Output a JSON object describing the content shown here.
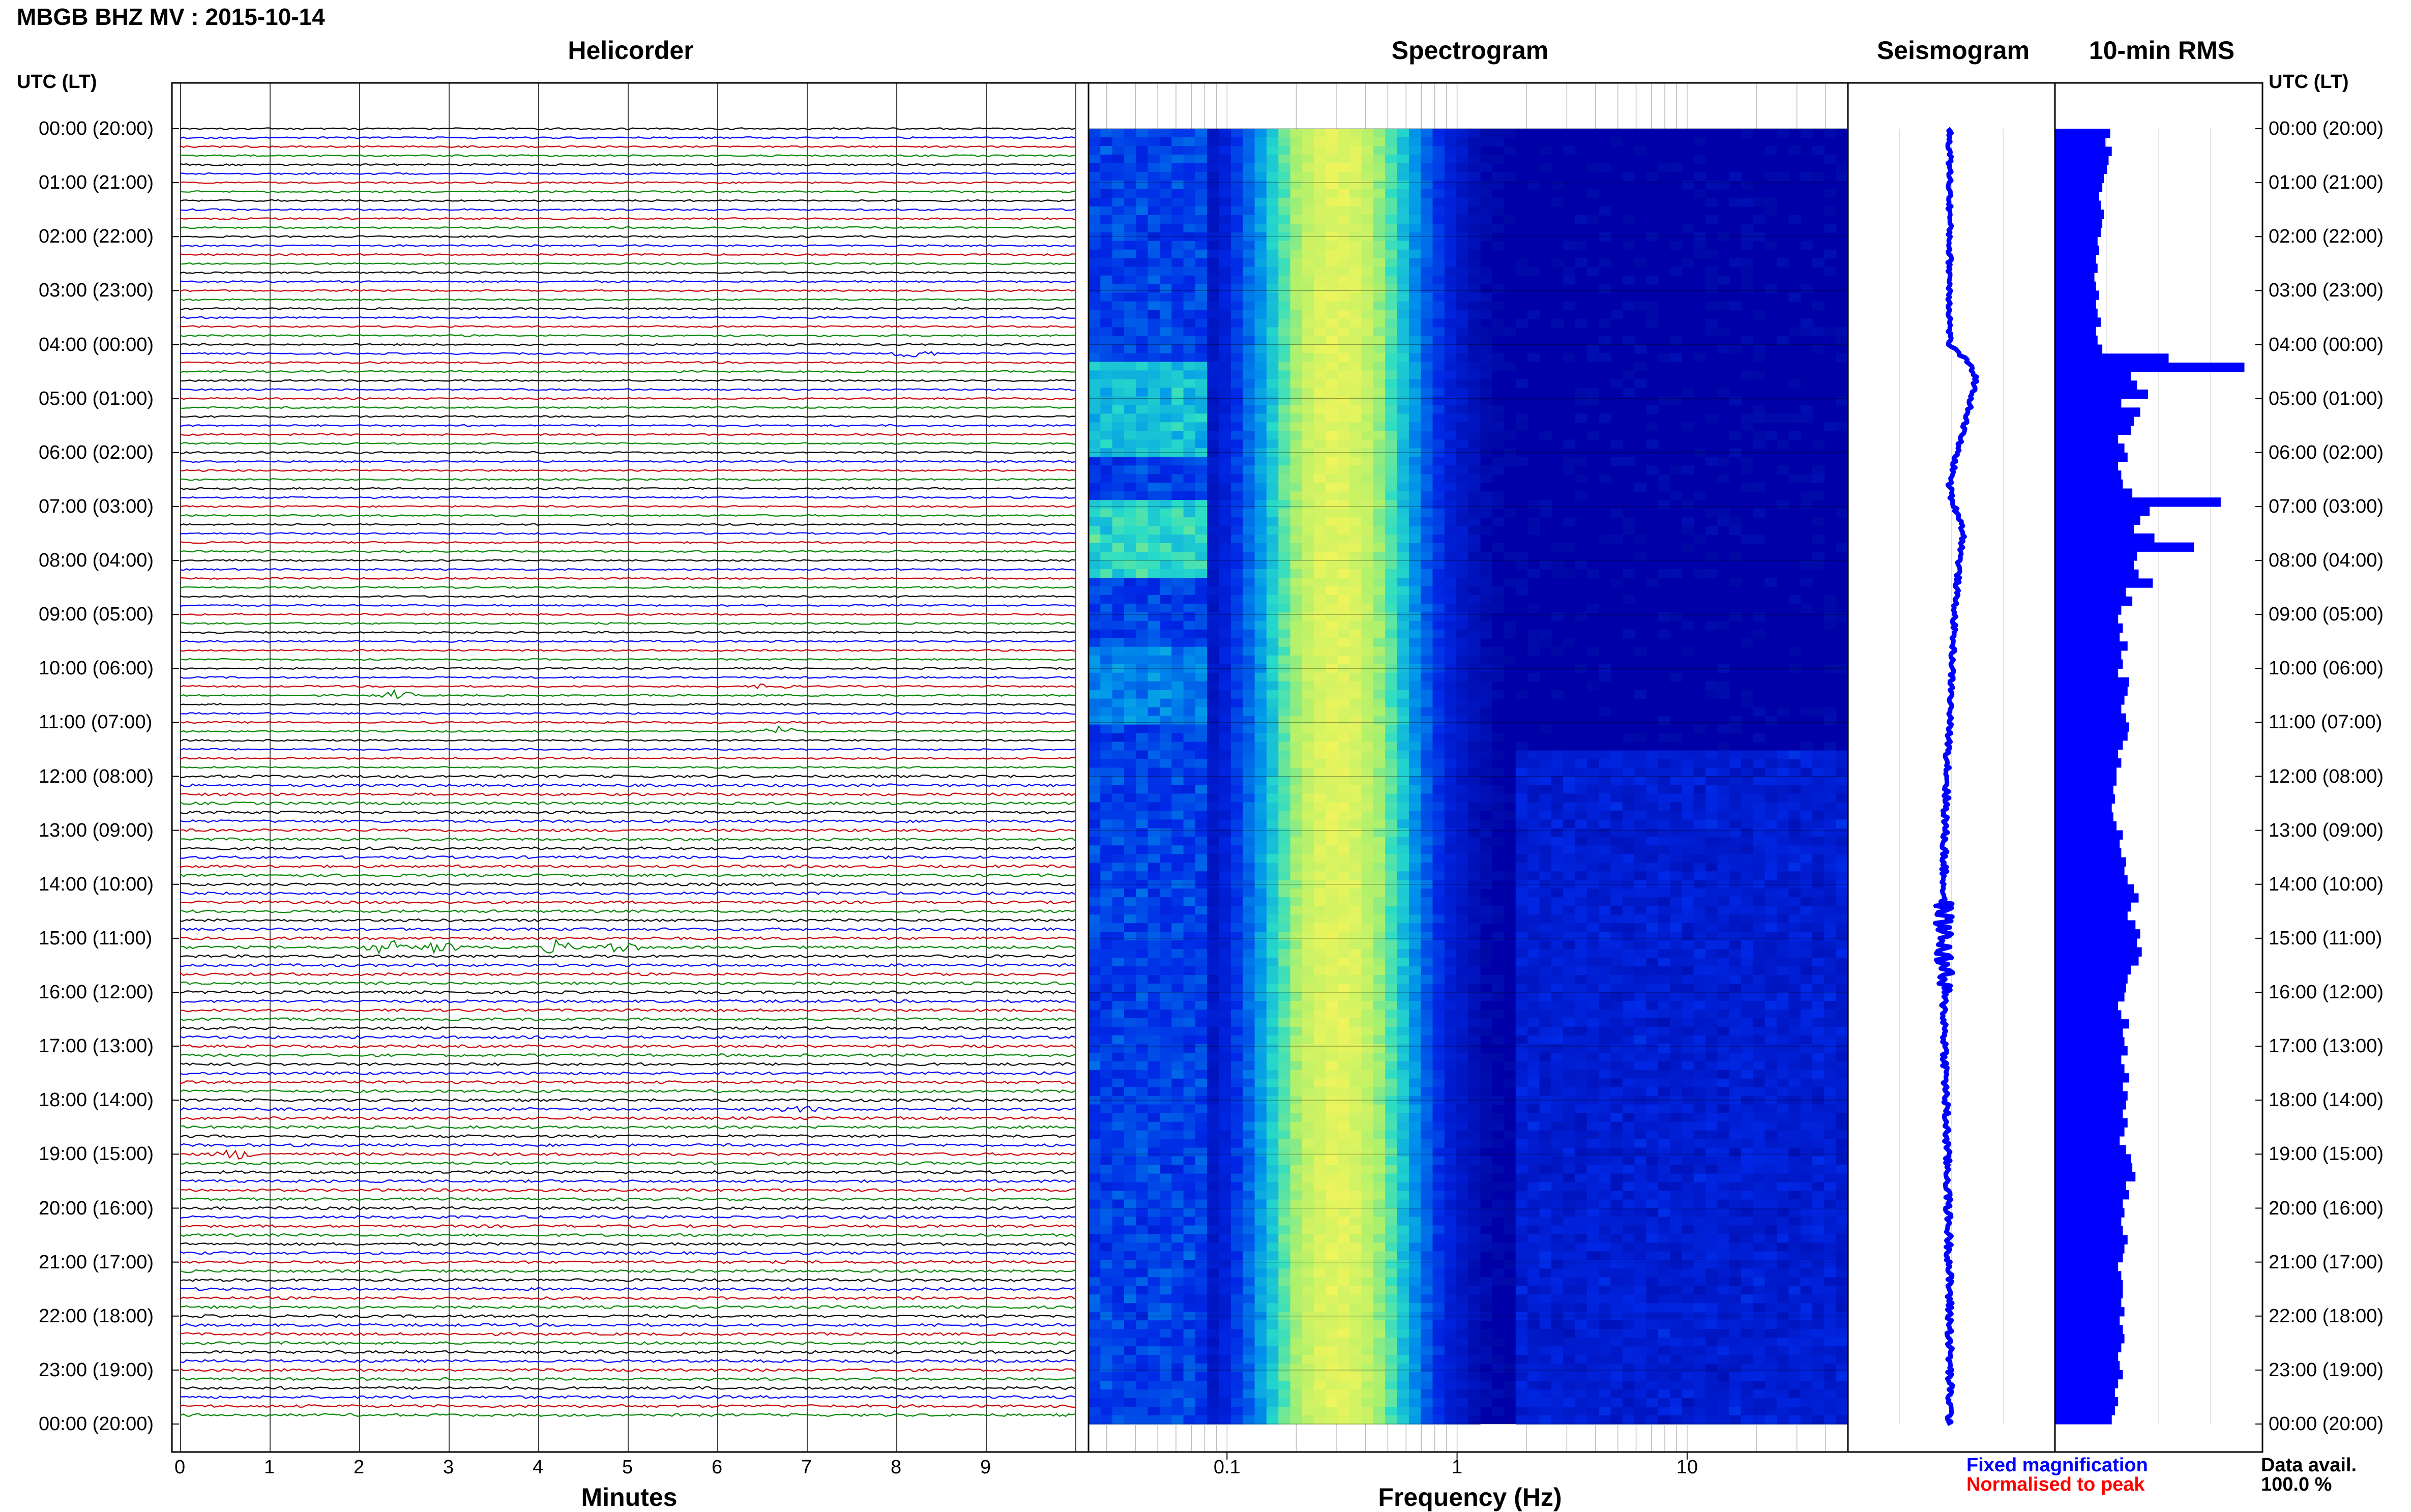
{
  "header": {
    "title": "MBGB BHZ MV : 2015-10-14"
  },
  "panels": {
    "helicorder": "Helicorder",
    "spectrogram": "Spectrogram",
    "seismogram": "Seismogram",
    "rms": "10-min RMS"
  },
  "time_axis": {
    "label": "UTC (LT)",
    "ticks": [
      "00:00 (20:00)",
      "01:00 (21:00)",
      "02:00 (22:00)",
      "03:00 (23:00)",
      "04:00 (00:00)",
      "05:00 (01:00)",
      "06:00 (02:00)",
      "07:00 (03:00)",
      "08:00 (04:00)",
      "09:00 (05:00)",
      "10:00 (06:00)",
      "11:00 (07:00)",
      "12:00 (08:00)",
      "13:00 (09:00)",
      "14:00 (10:00)",
      "15:00 (11:00)",
      "16:00 (12:00)",
      "17:00 (13:00)",
      "18:00 (14:00)",
      "19:00 (15:00)",
      "20:00 (16:00)",
      "21:00 (17:00)",
      "22:00 (18:00)",
      "23:00 (19:00)",
      "00:00 (20:00)"
    ]
  },
  "x_axes": {
    "minutes_label": "Minutes",
    "minutes_ticks": [
      "0",
      "1",
      "2",
      "3",
      "4",
      "5",
      "6",
      "7",
      "8",
      "9"
    ],
    "frequency_label": "Frequency (Hz)",
    "frequency_ticks": [
      "0.1",
      "1",
      "10"
    ]
  },
  "legend": {
    "fixed": "Fixed magnification",
    "normalised": "Normalised to peak"
  },
  "availability": {
    "label": "Data avail.",
    "value": "100.0 %"
  },
  "colors": {
    "trace_colors": [
      "#000000",
      "#0000ff",
      "#cc0000",
      "#008800"
    ],
    "spectrogram_low": "#0000a8",
    "spectrogram_high": "#f0f060",
    "rms_fill": "#0000ff",
    "seismogram_line": "#0000ff"
  },
  "chart_data": [
    {
      "type": "line",
      "panel": "helicorder",
      "x_range_minutes": [
        0,
        10
      ],
      "rows_per_hour": 6,
      "hours": 24,
      "events": [
        {
          "hour": 4.17,
          "minute": 8.2,
          "amplitude": 3
        },
        {
          "hour": 10.5,
          "minute": 2.4,
          "amplitude": 3
        },
        {
          "hour": 10.3,
          "minute": 6.6,
          "amplitude": 2
        },
        {
          "hour": 11.1,
          "minute": 6.7,
          "amplitude": 3
        },
        {
          "hour": 15.17,
          "minute": 2.3,
          "amplitude": 5
        },
        {
          "hour": 15.17,
          "minute": 2.9,
          "amplitude": 4
        },
        {
          "hour": 15.17,
          "minute": 4.2,
          "amplitude": 4
        },
        {
          "hour": 15.17,
          "minute": 4.9,
          "amplitude": 4
        },
        {
          "hour": 18.17,
          "minute": 6.9,
          "amplitude": 2
        },
        {
          "hour": 19.0,
          "minute": 0.6,
          "amplitude": 3
        }
      ]
    },
    {
      "type": "heatmap",
      "panel": "spectrogram",
      "xscale": "log",
      "x_range_hz": [
        0.025,
        50
      ],
      "energy_peak_hz": 0.3
    },
    {
      "type": "line",
      "panel": "seismogram",
      "y_hours": [
        0,
        2,
        4,
        4.3,
        4.6,
        5.2,
        6.0,
        6.6,
        6.9,
        7.3,
        7.6,
        8.0,
        8.5,
        9.0,
        10.0,
        11.0,
        12.0,
        13.0,
        14.0,
        15.0,
        16.0,
        17.0,
        18.0,
        19.0,
        20.0,
        21.0,
        22.0,
        23.0,
        24.0
      ],
      "x_offset": [
        0,
        0,
        0,
        0.35,
        0.55,
        0.4,
        0.15,
        0.0,
        0.05,
        0.25,
        0.28,
        0.2,
        0.15,
        0.1,
        0.05,
        0.0,
        -0.05,
        -0.1,
        -0.12,
        -0.12,
        -0.12,
        -0.1,
        -0.08,
        -0.05,
        -0.03,
        -0.01,
        0.0,
        0.0,
        0.0
      ]
    },
    {
      "type": "bar",
      "panel": "rms",
      "orientation": "horizontal",
      "bin_minutes": 10,
      "values": [
        3.5,
        3.2,
        3.6,
        3.4,
        3.3,
        3.1,
        3.0,
        2.8,
        2.9,
        3.1,
        3.0,
        2.9,
        2.7,
        2.8,
        2.6,
        2.7,
        2.5,
        2.6,
        2.8,
        2.6,
        2.7,
        2.9,
        2.6,
        2.7,
        3.0,
        7.2,
        12.0,
        4.8,
        5.2,
        5.9,
        4.2,
        5.4,
        5.0,
        4.8,
        4.0,
        4.4,
        4.6,
        4.0,
        4.2,
        4.3,
        4.9,
        10.5,
        6.0,
        5.4,
        5.0,
        6.3,
        8.8,
        5.2,
        5.0,
        5.3,
        6.2,
        4.5,
        4.9,
        4.2,
        4.0,
        4.3,
        4.1,
        4.6,
        4.2,
        4.3,
        4.0,
        4.7,
        4.6,
        4.4,
        4.2,
        4.5,
        4.7,
        4.6,
        4.3,
        4.0,
        4.2,
        3.9,
        3.9,
        3.7,
        3.8,
        3.6,
        3.7,
        3.9,
        4.3,
        4.1,
        4.2,
        4.5,
        4.4,
        4.6,
        5.0,
        5.3,
        4.8,
        4.6,
        5.1,
        5.4,
        5.2,
        5.5,
        5.3,
        4.8,
        4.6,
        4.5,
        4.4,
        4.0,
        4.2,
        4.7,
        4.3,
        4.4,
        4.6,
        4.2,
        4.4,
        4.7,
        4.3,
        4.6,
        4.5,
        4.3,
        4.6,
        4.4,
        4.1,
        4.5,
        4.8,
        4.9,
        5.1,
        4.5,
        4.7,
        4.3,
        4.4,
        4.2,
        4.3,
        4.6,
        4.4,
        4.3,
        4.0,
        4.2,
        4.3,
        4.3,
        4.2,
        4.4,
        4.1,
        4.3,
        4.4,
        4.2,
        4.0,
        4.1,
        4.3,
        4.0,
        3.8,
        4.0,
        3.8,
        3.6
      ]
    }
  ]
}
